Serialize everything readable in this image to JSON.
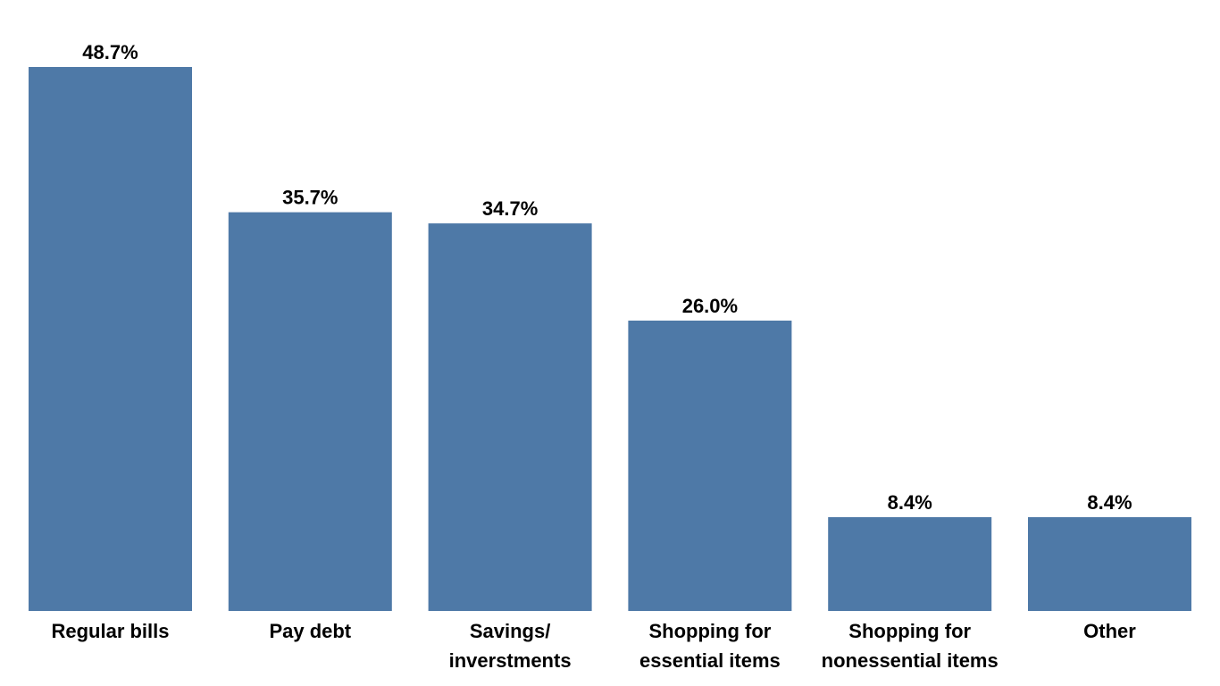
{
  "chart_data": {
    "type": "bar",
    "categories": [
      [
        "Regular bills"
      ],
      [
        "Pay debt"
      ],
      [
        "Savings/",
        "inverstments"
      ],
      [
        "Shopping for",
        "essential items"
      ],
      [
        "Shopping for",
        "nonessential items"
      ],
      [
        "Other"
      ]
    ],
    "values": [
      48.7,
      35.7,
      34.7,
      26.0,
      8.4,
      8.4
    ],
    "value_labels": [
      "48.7%",
      "35.7%",
      "34.7%",
      "26.0%",
      "8.4%",
      "8.4%"
    ],
    "ylim": [
      0,
      48.7
    ],
    "grid": false,
    "legend": "none",
    "bar_color": "#4e79a7"
  }
}
